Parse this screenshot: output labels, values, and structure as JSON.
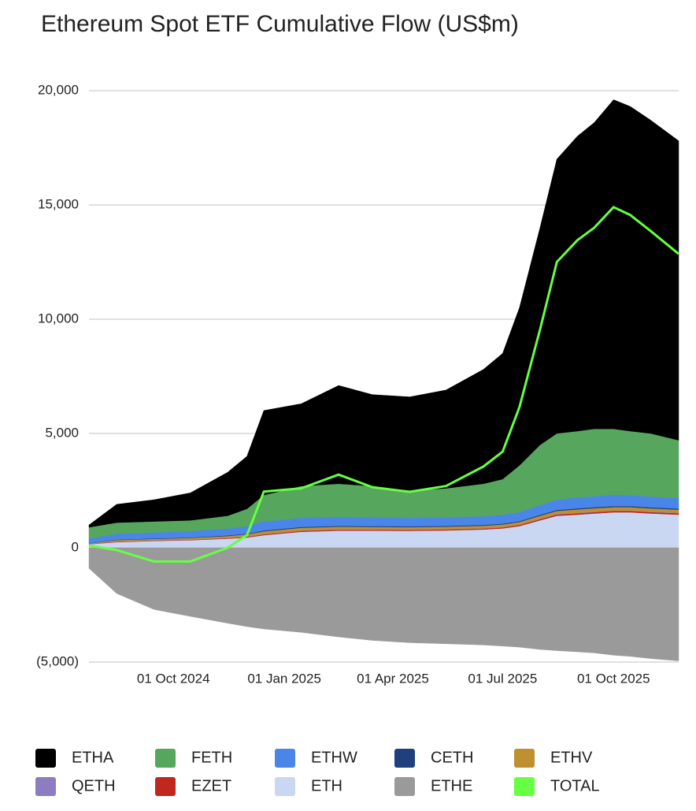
{
  "chart_data": {
    "type": "stacked_area",
    "title": "Ethereum Spot ETF Cumulative Flow (US$m)",
    "x": [
      "2024-07-23",
      "2024-08-15",
      "2024-09-15",
      "2024-10-15",
      "2024-11-15",
      "2024-12-01",
      "2024-12-15",
      "2025-01-15",
      "2025-02-15",
      "2025-03-15",
      "2025-04-15",
      "2025-05-15",
      "2025-06-15",
      "2025-07-01",
      "2025-07-15",
      "2025-08-01",
      "2025-08-15",
      "2025-09-01",
      "2025-09-15",
      "2025-10-01",
      "2025-10-15",
      "2025-11-01",
      "2025-11-24"
    ],
    "xlim": [
      "2024-07-23",
      "2025-11-24"
    ],
    "xticks": [
      {
        "value": "2024-10-01",
        "label": "01 Oct 2024"
      },
      {
        "value": "2025-01-01",
        "label": "01 Jan 2025"
      },
      {
        "value": "2025-04-01",
        "label": "01 Apr 2025"
      },
      {
        "value": "2025-07-01",
        "label": "01 Jul 2025"
      },
      {
        "value": "2025-10-01",
        "label": "01 Oct 2025"
      }
    ],
    "ylim": [
      -5000,
      20000
    ],
    "yticks": [
      {
        "value": -5000,
        "label": "(5,000)"
      },
      0,
      {
        "value": 5000,
        "label": "5,000"
      },
      {
        "value": 10000,
        "label": "10,000"
      },
      {
        "value": 15000,
        "label": "15,000"
      },
      {
        "value": 20000,
        "label": "20,000"
      }
    ],
    "grid": true,
    "series": [
      {
        "name": "ETHA",
        "color": "#000000",
        "type": "area",
        "values": [
          100,
          800,
          950,
          1200,
          1900,
          2300,
          3700,
          3600,
          4300,
          4000,
          4100,
          4300,
          5000,
          5500,
          6900,
          9500,
          12000,
          12900,
          13400,
          14400,
          14200,
          13700,
          13100
        ]
      },
      {
        "name": "FETH",
        "color": "#57a65e",
        "type": "area",
        "values": [
          500,
          490,
          480,
          470,
          560,
          760,
          1150,
          1390,
          1440,
          1370,
          1190,
          1270,
          1420,
          1560,
          2040,
          2630,
          2900,
          2900,
          2950,
          2890,
          2800,
          2760,
          2530
        ]
      },
      {
        "name": "ETHW",
        "color": "#4a86e8",
        "type": "area",
        "values": [
          200,
          250,
          260,
          280,
          300,
          320,
          400,
          400,
          400,
          380,
          370,
          370,
          380,
          390,
          400,
          430,
          450,
          480,
          480,
          490,
          480,
          470,
          460
        ]
      },
      {
        "name": "CETH",
        "color": "#1f3f7f",
        "type": "area",
        "values": [
          10,
          20,
          20,
          20,
          25,
          30,
          35,
          35,
          35,
          35,
          35,
          35,
          35,
          35,
          35,
          40,
          40,
          45,
          45,
          45,
          45,
          45,
          45
        ]
      },
      {
        "name": "ETHV",
        "color": "#bf9030",
        "type": "area",
        "values": [
          20,
          60,
          60,
          70,
          80,
          100,
          120,
          120,
          120,
          110,
          110,
          110,
          110,
          115,
          120,
          130,
          140,
          150,
          150,
          150,
          150,
          145,
          140
        ]
      },
      {
        "name": "QETH",
        "color": "#8e7cc3",
        "type": "area",
        "values": [
          5,
          10,
          10,
          10,
          10,
          12,
          15,
          15,
          15,
          15,
          15,
          15,
          15,
          15,
          15,
          20,
          20,
          20,
          20,
          20,
          20,
          20,
          20
        ]
      },
      {
        "name": "EZET",
        "color": "#c0281e",
        "type": "area",
        "values": [
          10,
          20,
          20,
          20,
          25,
          30,
          35,
          40,
          40,
          40,
          40,
          40,
          40,
          40,
          45,
          50,
          55,
          60,
          60,
          60,
          60,
          60,
          60
        ]
      },
      {
        "name": "ETH",
        "color": "#c9d7f2",
        "type": "area",
        "values": [
          150,
          250,
          300,
          330,
          400,
          450,
          550,
          700,
          750,
          750,
          740,
          760,
          800,
          850,
          950,
          1200,
          1400,
          1450,
          1500,
          1550,
          1550,
          1500,
          1450
        ]
      },
      {
        "name": "ETHE",
        "color": "#9a9a9a",
        "type": "area",
        "values": [
          -900,
          -2000,
          -2700,
          -3000,
          -3300,
          -3450,
          -3550,
          -3700,
          -3900,
          -4050,
          -4150,
          -4200,
          -4250,
          -4300,
          -4350,
          -4450,
          -4500,
          -4550,
          -4600,
          -4700,
          -4750,
          -4850,
          -4950
        ]
      },
      {
        "name": "TOTAL",
        "color": "#66ff44",
        "type": "line",
        "values": [
          95,
          -100,
          -600,
          -600,
          0,
          552,
          2455,
          2600,
          3200,
          2650,
          2450,
          2700,
          3550,
          4205,
          6155,
          9550,
          12505,
          13455,
          14005,
          14905,
          14555,
          13850,
          12855
        ]
      }
    ]
  }
}
